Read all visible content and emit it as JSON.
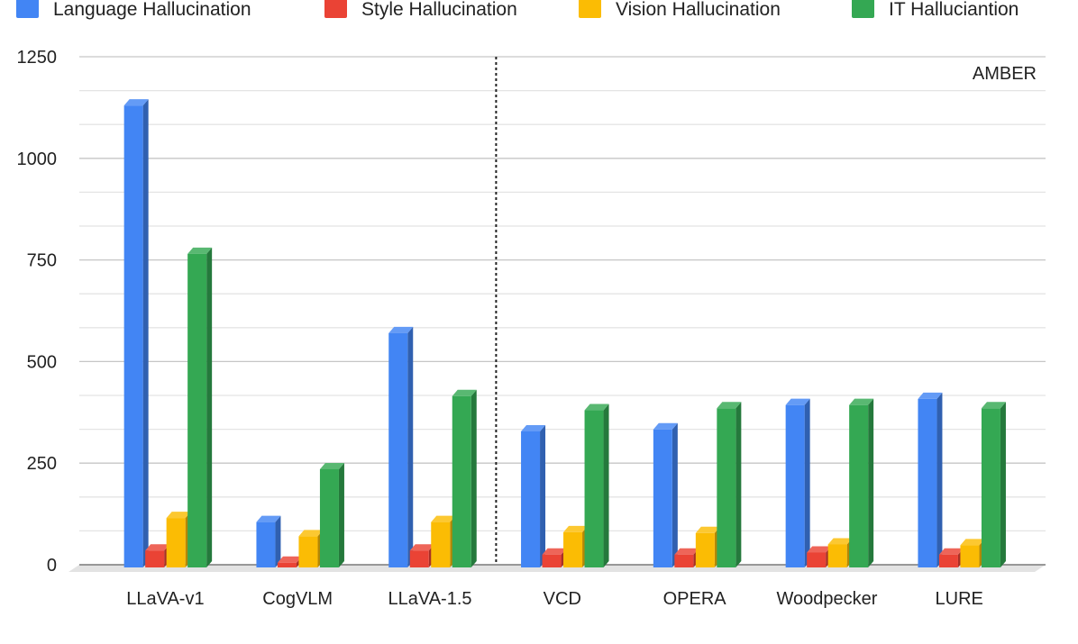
{
  "chart_data": {
    "type": "bar",
    "annotation": "AMBER",
    "categories": [
      "LLaVA-v1",
      "CogVLM",
      "LLaVA-1.5",
      "VCD",
      "OPERA",
      "Woodpecker",
      "LURE"
    ],
    "yticks": [
      "0",
      "250",
      "500",
      "750",
      "1000",
      "1250"
    ],
    "ylim": [
      0,
      1250
    ],
    "grid": true,
    "legend_position": "top",
    "divider_after_category": "LLaVA-1.5",
    "series": [
      {
        "name": "Language Hallucination",
        "color": "#4285F4",
        "values": [
          1130,
          105,
          570,
          328,
          333,
          393,
          408
        ]
      },
      {
        "name": "Style Hallucination",
        "color": "#EA4335",
        "values": [
          35,
          5,
          35,
          25,
          25,
          30,
          25
        ]
      },
      {
        "name": "Vision Hallucination",
        "color": "#FBBC04",
        "values": [
          115,
          70,
          105,
          80,
          78,
          50,
          48
        ]
      },
      {
        "name": "IT Halluciantion",
        "color": "#34A853",
        "values": [
          765,
          235,
          415,
          380,
          385,
          393,
          385
        ]
      }
    ]
  }
}
